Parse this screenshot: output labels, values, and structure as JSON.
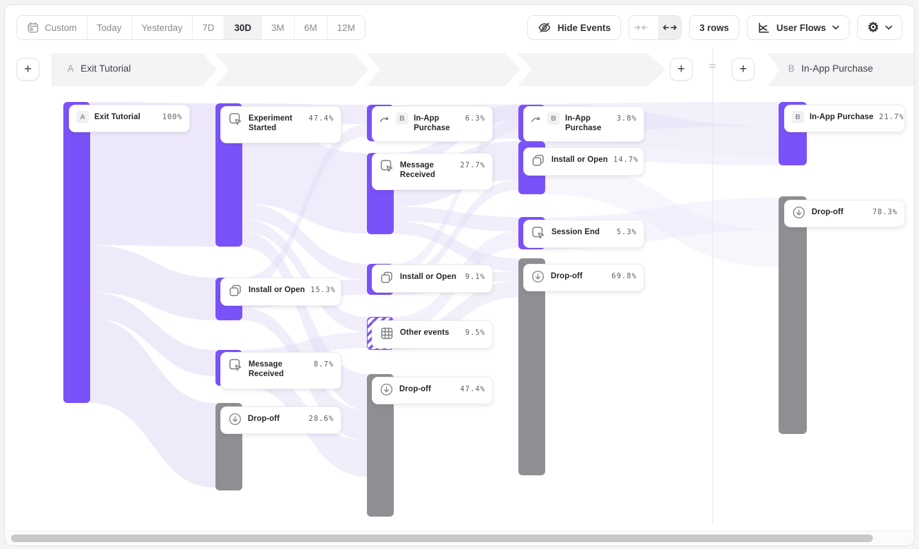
{
  "toolbar": {
    "date_ranges": [
      {
        "label": "Custom",
        "icon": "calendar-icon",
        "selected": false
      },
      {
        "label": "Today",
        "selected": false
      },
      {
        "label": "Yesterday",
        "selected": false
      },
      {
        "label": "7D",
        "selected": false
      },
      {
        "label": "30D",
        "selected": true
      },
      {
        "label": "3M",
        "selected": false
      },
      {
        "label": "6M",
        "selected": false
      },
      {
        "label": "12M",
        "selected": false
      }
    ],
    "hide_events_label": "Hide Events",
    "rows_label": "3 rows",
    "view_selector_label": "User Flows",
    "collapse_icon": "arrows-collapse-icon",
    "expand_icon": "arrows-expand-icon",
    "expand_selected": true,
    "settings_icon": "gear-icon",
    "gear_glyph": "⚙"
  },
  "header": {
    "flow_a": {
      "letter": "A",
      "label": "Exit Tutorial"
    },
    "flow_b": {
      "letter": "B",
      "label": "In-App Purchase"
    },
    "approx_symbol": "≈",
    "add_step_label": "+"
  },
  "colors": {
    "purple": "#7B52F9",
    "gray": "#8F8F93",
    "ribbon": "#E3DCF7",
    "band": "#F4F4F6"
  },
  "nodes": [
    {
      "id": "exit-tutorial",
      "label": "Exit Tutorial",
      "value": "100%",
      "letter": "A",
      "icon": null,
      "kind": "start"
    },
    {
      "id": "experiment-started",
      "label": "Experiment Started",
      "value": "47.4%",
      "letter": null,
      "icon": "tap-icon",
      "kind": "event"
    },
    {
      "id": "install-or-open-2",
      "label": "Install or Open",
      "value": "15.3%",
      "letter": null,
      "icon": "copy-icon",
      "kind": "event"
    },
    {
      "id": "message-received-2",
      "label": "Message Received",
      "value": "8.7%",
      "letter": null,
      "icon": "tap-icon",
      "kind": "event"
    },
    {
      "id": "dropoff-2",
      "label": "Drop-off",
      "value": "28.6%",
      "letter": null,
      "icon": "dropoff-icon",
      "kind": "dropoff"
    },
    {
      "id": "in-app-purchase-3",
      "label": "In-App Purchase",
      "value": "6.3%",
      "letter": "B",
      "icon": "flow-arrow-icon",
      "kind": "conversion"
    },
    {
      "id": "message-received-3",
      "label": "Message Received",
      "value": "27.7%",
      "letter": null,
      "icon": "tap-icon",
      "kind": "event"
    },
    {
      "id": "install-or-open-3",
      "label": "Install or Open",
      "value": "9.1%",
      "letter": null,
      "icon": "copy-icon",
      "kind": "event"
    },
    {
      "id": "other-events-3",
      "label": "Other events",
      "value": "9.5%",
      "letter": null,
      "icon": "grid-icon",
      "kind": "other"
    },
    {
      "id": "dropoff-3",
      "label": "Drop-off",
      "value": "47.4%",
      "letter": null,
      "icon": "dropoff-icon",
      "kind": "dropoff"
    },
    {
      "id": "in-app-purchase-4",
      "label": "In-App Purchase",
      "value": "3.8%",
      "letter": "B",
      "icon": "flow-arrow-icon",
      "kind": "conversion"
    },
    {
      "id": "install-or-open-4",
      "label": "Install or Open",
      "value": "14.7%",
      "letter": null,
      "icon": "copy-icon",
      "kind": "event"
    },
    {
      "id": "session-end-4",
      "label": "Session End",
      "value": "5.3%",
      "letter": null,
      "icon": "tap-icon",
      "kind": "event"
    },
    {
      "id": "dropoff-4",
      "label": "Drop-off",
      "value": "69.8%",
      "letter": null,
      "icon": "dropoff-icon",
      "kind": "dropoff"
    },
    {
      "id": "in-app-purchase-b",
      "label": "In-App Purchase",
      "value": "21.7%",
      "letter": "B",
      "icon": null,
      "kind": "end"
    },
    {
      "id": "dropoff-b",
      "label": "Drop-off",
      "value": "78.3%",
      "letter": null,
      "icon": "dropoff-icon",
      "kind": "dropoff"
    }
  ]
}
